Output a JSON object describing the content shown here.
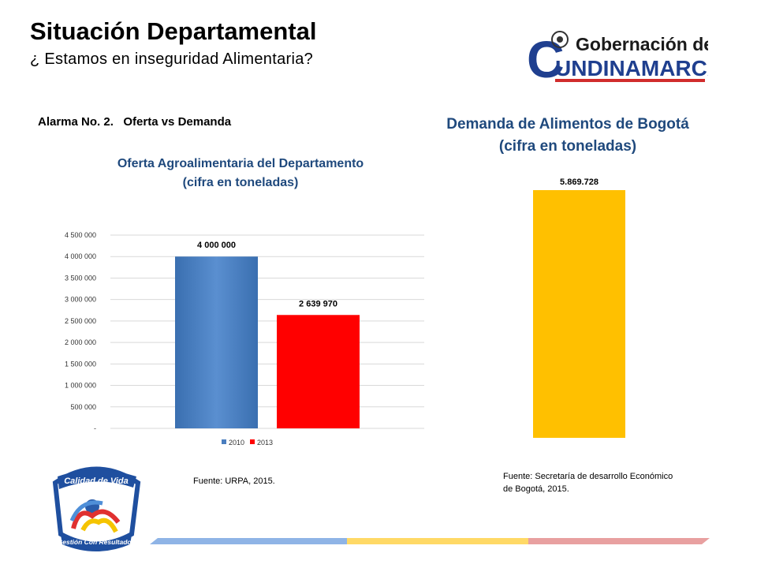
{
  "header": {
    "title": "Situación Departamental",
    "subtitle": "¿ Estamos en inseguridad Alimentaria?"
  },
  "logo_right": {
    "big_letter": "C",
    "line1": "Gobernación de",
    "line2": "UNDINAMARCA"
  },
  "logo_left": {
    "top_text": "Calidad de Vida",
    "bottom_text": "Gestión Con Resultados"
  },
  "alarm_label": "Alarma No. 2.   Oferta vs Demanda",
  "oferta": {
    "title_line1": "Oferta Agroalimentaria del Departamento",
    "title_line2": "(cifra en toneladas)",
    "source": "Fuente: URPA, 2015."
  },
  "demanda": {
    "title_line1": "Demanda de Alimentos de Bogotá",
    "title_line2": "(cifra en toneladas)",
    "source": "Fuente: Secretaría de desarrollo Económico de Bogotá, 2015."
  },
  "colors": {
    "title_blue": "#1f497d",
    "bar_2010": "#4a7ebf",
    "bar_2013": "#ff0000",
    "bar_demand": "#ffc000"
  },
  "chart_data": [
    {
      "type": "bar",
      "title": "Oferta Agroalimentaria del Departamento (cifra en toneladas)",
      "categories": [
        "2010",
        "2013"
      ],
      "values": [
        4000000,
        2639970
      ],
      "data_labels": [
        "4 000 000",
        "2 639 970"
      ],
      "ylim": [
        0,
        4500000
      ],
      "yticks": [
        0,
        500000,
        1000000,
        1500000,
        2000000,
        2500000,
        3000000,
        3500000,
        4000000,
        4500000
      ],
      "ytick_labels": [
        "-",
        "500 000",
        "1 000 000",
        "1 500 000",
        "2 000 000",
        "2 500 000",
        "3 000 000",
        "3 500 000",
        "4 000 000",
        "4 500 000"
      ],
      "legend": [
        "2010",
        "2013"
      ],
      "legend_position": "bottom",
      "grid": true,
      "colors": [
        "#4a7ebf",
        "#ff0000"
      ]
    },
    {
      "type": "bar",
      "title": "Demanda de Alimentos de Bogotá (cifra en toneladas)",
      "categories": [
        ""
      ],
      "values": [
        5869728
      ],
      "data_labels": [
        "5.869.728"
      ],
      "ylim": [
        0,
        5869728
      ],
      "grid": false,
      "colors": [
        "#ffc000"
      ]
    }
  ]
}
